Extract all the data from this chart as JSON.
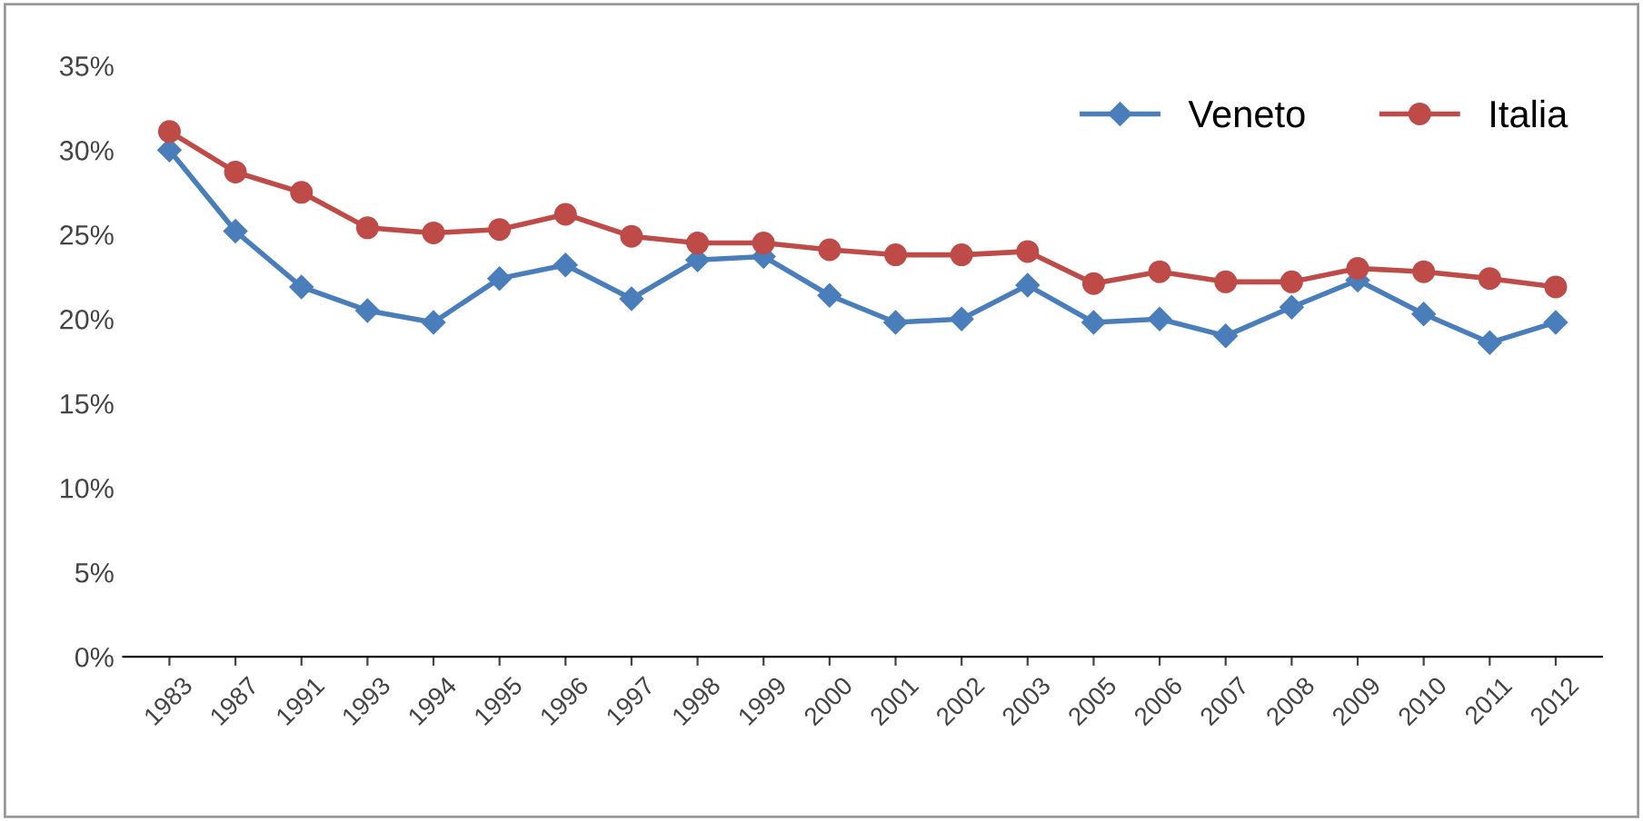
{
  "chart_data": {
    "type": "line",
    "categories": [
      "1983",
      "1987",
      "1991",
      "1993",
      "1994",
      "1995",
      "1996",
      "1997",
      "1998",
      "1999",
      "2000",
      "2001",
      "2002",
      "2003",
      "2005",
      "2006",
      "2007",
      "2008",
      "2009",
      "2010",
      "2011",
      "2012"
    ],
    "series": [
      {
        "name": "Veneto",
        "color": "#4a7ebb",
        "marker": "diamond",
        "values": [
          30.0,
          25.2,
          21.9,
          20.5,
          19.8,
          22.4,
          23.2,
          21.2,
          23.5,
          23.7,
          21.4,
          19.8,
          20.0,
          22.0,
          19.8,
          20.0,
          19.0,
          20.7,
          22.3,
          20.3,
          18.6,
          19.8
        ]
      },
      {
        "name": "Italia",
        "color": "#be4b48",
        "marker": "circle",
        "values": [
          31.1,
          28.7,
          27.5,
          25.4,
          25.1,
          25.3,
          26.2,
          24.9,
          24.5,
          24.5,
          24.1,
          23.8,
          23.8,
          24.0,
          22.1,
          22.8,
          22.2,
          22.2,
          23.0,
          22.8,
          22.4,
          21.9
        ]
      }
    ],
    "ylim": [
      0,
      35
    ],
    "yticks": [
      {
        "value": 0,
        "label": "0%"
      },
      {
        "value": 5,
        "label": "5%"
      },
      {
        "value": 10,
        "label": "10%"
      },
      {
        "value": 15,
        "label": "15%"
      },
      {
        "value": 20,
        "label": "20%"
      },
      {
        "value": 25,
        "label": "25%"
      },
      {
        "value": 30,
        "label": "30%"
      },
      {
        "value": 35,
        "label": "35%"
      }
    ],
    "grid": false,
    "legend": "top right",
    "line_style": "solid"
  }
}
